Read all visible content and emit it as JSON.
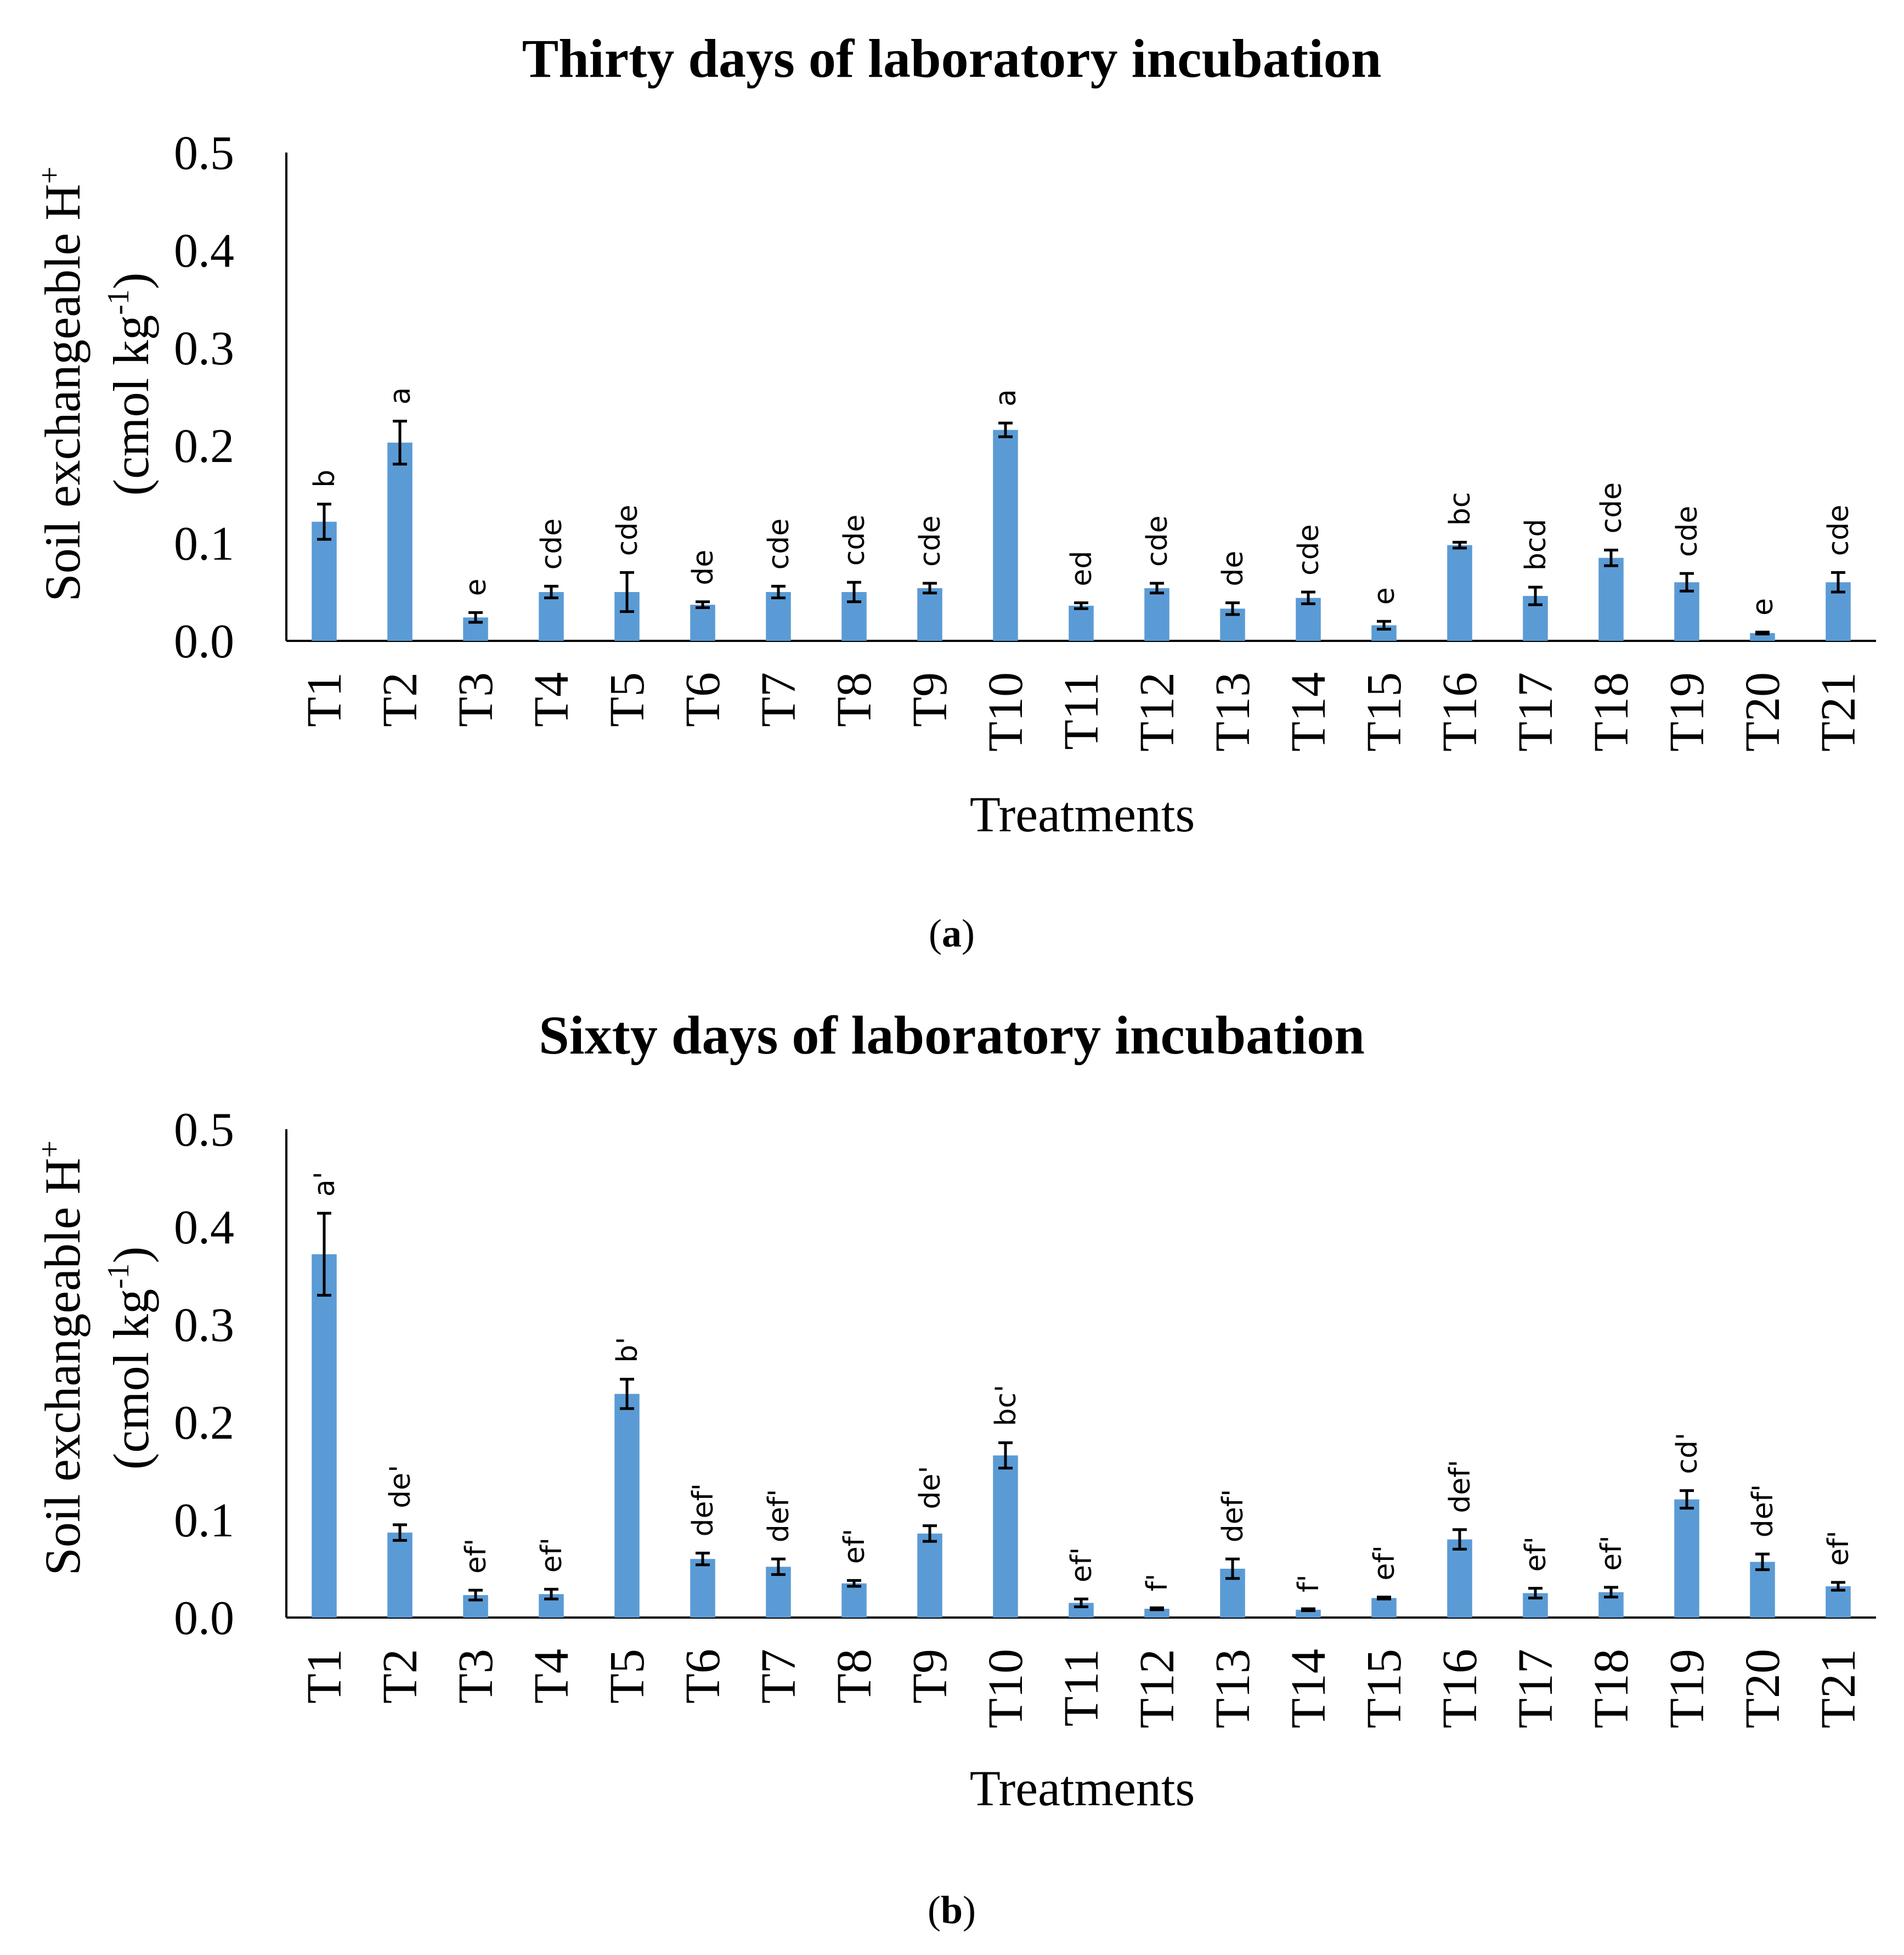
{
  "chart_data": [
    {
      "type": "bar",
      "panel": "a",
      "title": "Thirty days of laboratory incubation",
      "xlabel": "Treatments",
      "ylabel_line1": "Soil exchangeable H",
      "ylabel_line1_sup": "+",
      "ylabel_line2_pre": "(cmol kg",
      "ylabel_line2_sup": "-1",
      "ylabel_line2_post": ")",
      "ylim": [
        0,
        0.5
      ],
      "yticks": [
        "0.0",
        "0.1",
        "0.2",
        "0.3",
        "0.4",
        "0.5"
      ],
      "bar_color": "#5b9bd5",
      "categories": [
        "T1",
        "T2",
        "T3",
        "T4",
        "T5",
        "T6",
        "T7",
        "T8",
        "T9",
        "T10",
        "T11",
        "T12",
        "T13",
        "T14",
        "T15",
        "T16",
        "T17",
        "T18",
        "T19",
        "T20",
        "T21"
      ],
      "values": [
        0.122,
        0.203,
        0.024,
        0.05,
        0.05,
        0.037,
        0.05,
        0.05,
        0.054,
        0.216,
        0.036,
        0.054,
        0.033,
        0.044,
        0.016,
        0.098,
        0.046,
        0.085,
        0.06,
        0.008,
        0.06
      ],
      "errors": [
        0.018,
        0.022,
        0.005,
        0.006,
        0.02,
        0.003,
        0.006,
        0.01,
        0.005,
        0.007,
        0.003,
        0.005,
        0.006,
        0.006,
        0.004,
        0.003,
        0.009,
        0.008,
        0.009,
        0.001,
        0.01
      ],
      "significance": [
        "b",
        "a",
        "e",
        "cde",
        "cde",
        "de",
        "cde",
        "cde",
        "cde",
        "a",
        "ed",
        "cde",
        "de",
        "cde",
        "e",
        "bc",
        "bcd",
        "cde",
        "cde",
        "e",
        "cde"
      ]
    },
    {
      "type": "bar",
      "panel": "b",
      "title": "Sixty days of laboratory incubation",
      "xlabel": "Treatments",
      "ylabel_line1": "Soil exchangeable H",
      "ylabel_line1_sup": "+",
      "ylabel_line2_pre": "(cmol kg",
      "ylabel_line2_sup": "-1",
      "ylabel_line2_post": ")",
      "ylim": [
        0,
        0.5
      ],
      "yticks": [
        "0.0",
        "0.1",
        "0.2",
        "0.3",
        "0.4",
        "0.5"
      ],
      "bar_color": "#5b9bd5",
      "categories": [
        "T1",
        "T2",
        "T3",
        "T4",
        "T5",
        "T6",
        "T7",
        "T8",
        "T9",
        "T10",
        "T11",
        "T12",
        "T13",
        "T14",
        "T15",
        "T16",
        "T17",
        "T18",
        "T19",
        "T20",
        "T21"
      ],
      "values": [
        0.372,
        0.087,
        0.023,
        0.024,
        0.229,
        0.06,
        0.052,
        0.035,
        0.086,
        0.166,
        0.015,
        0.009,
        0.05,
        0.008,
        0.02,
        0.08,
        0.025,
        0.026,
        0.121,
        0.057,
        0.032
      ],
      "errors": [
        0.042,
        0.008,
        0.005,
        0.005,
        0.015,
        0.006,
        0.008,
        0.003,
        0.008,
        0.013,
        0.004,
        0.001,
        0.01,
        0.001,
        0.001,
        0.01,
        0.005,
        0.005,
        0.009,
        0.008,
        0.004
      ],
      "significance": [
        "a'",
        "de'",
        "ef'",
        "ef'",
        "b'",
        "def'",
        "def'",
        "ef'",
        "de'",
        "bc'",
        "ef'",
        "f'",
        "def'",
        "f'",
        "ef'",
        "def'",
        "ef'",
        "ef'",
        "cd'",
        "def'",
        "ef'"
      ]
    }
  ]
}
